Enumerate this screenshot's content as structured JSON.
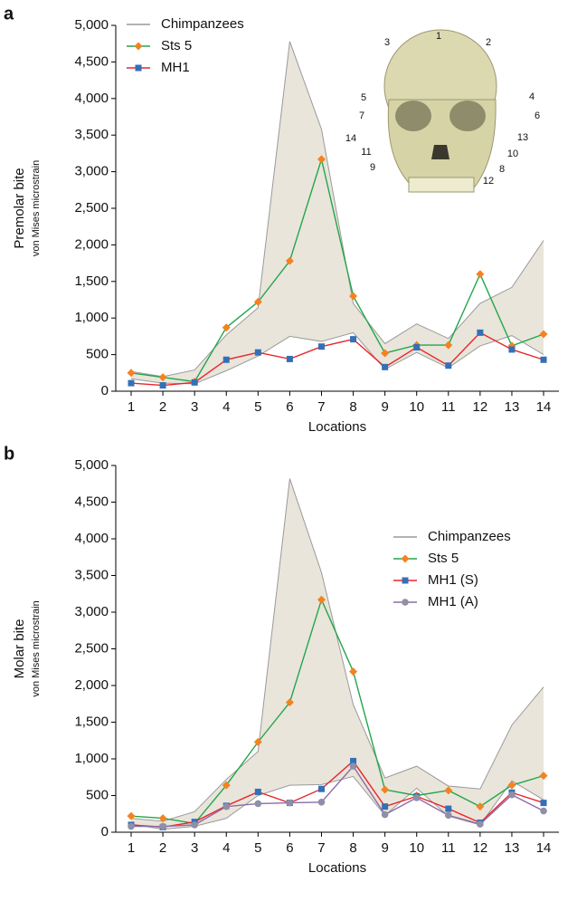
{
  "chart_data": [
    {
      "type": "line",
      "panel": "a",
      "ylabel": "Premolar bite",
      "ylabel_sub": "von Mises microstrain",
      "xlabel": "Locations",
      "categories": [
        "1",
        "2",
        "3",
        "4",
        "5",
        "6",
        "7",
        "8",
        "9",
        "10",
        "11",
        "12",
        "13",
        "14"
      ],
      "ylim": [
        0,
        5000
      ],
      "yticks": [
        0,
        500,
        {
          "value": 1000,
          "label": "1,000"
        },
        {
          "value": 1500,
          "label": "1,500"
        },
        {
          "value": 2000,
          "label": "2,000"
        },
        {
          "value": 2500,
          "label": "2,500"
        },
        {
          "value": 3000,
          "label": "3,000"
        },
        {
          "value": 3500,
          "label": "3,500"
        },
        {
          "value": 4000,
          "label": "4,000"
        },
        {
          "value": 4500,
          "label": "4,500"
        },
        {
          "value": 5000,
          "label": "5,000"
        }
      ],
      "legend_position": "upper left",
      "band": {
        "name": "Chimpanzees",
        "color": "#e9e5db",
        "edge_color": "#9a9a9a",
        "high": [
          270,
          200,
          290,
          770,
          1140,
          4780,
          3580,
          1200,
          650,
          920,
          720,
          1200,
          1420,
          2060
        ],
        "low": [
          170,
          110,
          100,
          280,
          480,
          750,
          680,
          800,
          300,
          530,
          320,
          620,
          760,
          500
        ]
      },
      "series": [
        {
          "name": "Sts 5",
          "color": "#22a64a",
          "marker_color": "#f58220",
          "marker": "diamond",
          "values": [
            250,
            190,
            130,
            870,
            1220,
            1780,
            3170,
            1300,
            520,
            630,
            630,
            1600,
            620,
            780
          ]
        },
        {
          "name": "MH1",
          "color": "#e8262b",
          "marker_color": "#3370b8",
          "marker": "square",
          "values": [
            110,
            80,
            120,
            430,
            530,
            440,
            610,
            710,
            330,
            600,
            350,
            800,
            570,
            430
          ]
        }
      ],
      "annotations": [
        "1",
        "2",
        "3",
        "4",
        "5",
        "6",
        "7",
        "8",
        "9",
        "10",
        "11",
        "12",
        "13",
        "14"
      ]
    },
    {
      "type": "line",
      "panel": "b",
      "ylabel": "Molar bite",
      "ylabel_sub": "von Mises microstrain",
      "xlabel": "Locations",
      "categories": [
        "1",
        "2",
        "3",
        "4",
        "5",
        "6",
        "7",
        "8",
        "9",
        "10",
        "11",
        "12",
        "13",
        "14"
      ],
      "ylim": [
        0,
        5000
      ],
      "yticks": [
        0,
        500,
        {
          "value": 1000,
          "label": "1,000"
        },
        {
          "value": 1500,
          "label": "1,500"
        },
        {
          "value": 2000,
          "label": "2,000"
        },
        {
          "value": 2500,
          "label": "2,500"
        },
        {
          "value": 3000,
          "label": "3,000"
        },
        {
          "value": 3500,
          "label": "3,500"
        },
        {
          "value": 4000,
          "label": "4,000"
        },
        {
          "value": 4500,
          "label": "4,500"
        },
        {
          "value": 5000,
          "label": "5,000"
        }
      ],
      "legend_position": "center right",
      "band": {
        "name": "Chimpanzees",
        "color": "#e9e5db",
        "edge_color": "#9a9a9a",
        "high": [
          190,
          150,
          280,
          720,
          1100,
          4820,
          3540,
          1740,
          740,
          900,
          630,
          590,
          1460,
          1980
        ],
        "low": [
          110,
          40,
          80,
          190,
          500,
          640,
          650,
          760,
          230,
          600,
          220,
          100,
          700,
          440
        ]
      },
      "series": [
        {
          "name": "Sts 5",
          "color": "#22a64a",
          "marker_color": "#f58220",
          "marker": "diamond",
          "values": [
            220,
            190,
            120,
            640,
            1230,
            1770,
            3170,
            2190,
            580,
            500,
            570,
            350,
            640,
            770
          ]
        },
        {
          "name": "MH1 (S)",
          "color": "#e8262b",
          "marker_color": "#3370b8",
          "marker": "square",
          "values": [
            100,
            70,
            140,
            360,
            550,
            400,
            590,
            970,
            350,
            490,
            320,
            130,
            540,
            400
          ]
        },
        {
          "name": "MH1 (A)",
          "color": "#8e6aa8",
          "marker_color": "#8f8fa6",
          "marker": "circle",
          "values": [
            80,
            80,
            100,
            350,
            390,
            400,
            410,
            900,
            240,
            470,
            230,
            110,
            510,
            290
          ]
        }
      ]
    }
  ]
}
